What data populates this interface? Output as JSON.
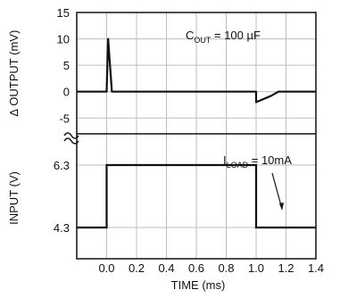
{
  "chart_data": [
    {
      "type": "line",
      "panel": "top",
      "ylabel": "∆ OUTPUT (mV)",
      "ylim": [
        -8,
        15
      ],
      "yticks": [
        15,
        10,
        5,
        0,
        -5
      ],
      "xlim": [
        -0.2,
        1.4
      ],
      "grid": true,
      "annotation": {
        "prefix": "C",
        "subscript": "OUT",
        "suffix": " = 100 µF"
      },
      "series": [
        {
          "x": [
            -0.2,
            0.0,
            0.01,
            0.035,
            1.0,
            1.0,
            1.1,
            1.15,
            1.4
          ],
          "y": [
            0,
            0,
            10,
            0,
            0,
            -2,
            -0.8,
            0,
            0
          ]
        }
      ]
    },
    {
      "type": "line",
      "panel": "bottom",
      "ylabel": "INPUT (V)",
      "yticks": [
        6.3,
        4.3
      ],
      "ylim": [
        3.3,
        7.3
      ],
      "xlabel": "TIME (ms)",
      "xlim": [
        -0.2,
        1.4
      ],
      "xticks": [
        "0.0",
        "0.2",
        "0.4",
        "0.6",
        "0.8",
        "1.0",
        "1.2",
        "1.4"
      ],
      "xtick_values": [
        0.0,
        0.2,
        0.4,
        0.6,
        0.8,
        1.0,
        1.2,
        1.4
      ],
      "grid": true,
      "annotation": {
        "prefix": "I",
        "subscript": "LOAD",
        "suffix": " = 10mA"
      },
      "series": [
        {
          "x": [
            -0.2,
            0.0,
            0.0,
            1.0,
            1.0,
            1.4
          ],
          "y": [
            4.3,
            4.3,
            6.3,
            6.3,
            4.3,
            4.3
          ]
        }
      ]
    }
  ]
}
